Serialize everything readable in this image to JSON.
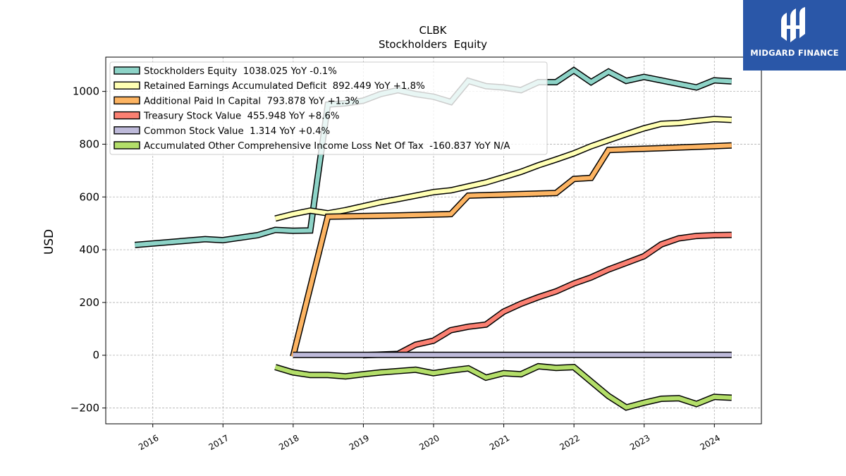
{
  "chart_data": {
    "type": "line",
    "title": "CLBK",
    "subtitle": "Stockholders  Equity",
    "ylabel": "USD",
    "xlabel": "",
    "ylim": [
      -260,
      1130
    ],
    "xlim": [
      2015.33,
      2024.67
    ],
    "grid": true,
    "legend_position": "top-left",
    "x_ticks": [
      "2016",
      "2017",
      "2018",
      "2019",
      "2020",
      "2021",
      "2022",
      "2023",
      "2024"
    ],
    "y_ticks": [
      "−200",
      "0",
      "200",
      "400",
      "600",
      "800",
      "1000"
    ],
    "series": [
      {
        "name": "Stockholders Equity",
        "legend_label": "Stockholders Equity  1038.025 YoY -0.1%",
        "color": "#8dd3c7",
        "points": [
          [
            "2015-09-30",
            418
          ],
          [
            "2016-09-30",
            440
          ],
          [
            "2016-12-31",
            436
          ],
          [
            "2017-06-30",
            455
          ],
          [
            "2017-09-30",
            475
          ],
          [
            "2017-12-31",
            472
          ],
          [
            "2018-03-31",
            473
          ],
          [
            "2018-06-30",
            950
          ],
          [
            "2018-09-30",
            955
          ],
          [
            "2018-12-31",
            965
          ],
          [
            "2019-03-31",
            990
          ],
          [
            "2019-06-30",
            1005
          ],
          [
            "2019-09-30",
            990
          ],
          [
            "2019-12-31",
            980
          ],
          [
            "2020-03-31",
            960
          ],
          [
            "2020-06-30",
            1040
          ],
          [
            "2020-09-30",
            1020
          ],
          [
            "2020-12-31",
            1015
          ],
          [
            "2021-03-31",
            1005
          ],
          [
            "2021-06-30",
            1035
          ],
          [
            "2021-09-30",
            1035
          ],
          [
            "2021-12-31",
            1080
          ],
          [
            "2022-03-31",
            1035
          ],
          [
            "2022-06-30",
            1075
          ],
          [
            "2022-09-30",
            1040
          ],
          [
            "2022-12-31",
            1055
          ],
          [
            "2023-09-30",
            1015
          ],
          [
            "2023-12-31",
            1042
          ],
          [
            "2024-03-31",
            1038
          ]
        ]
      },
      {
        "name": "Retained Earnings Accumulated Deficit",
        "legend_label": "Retained Earnings Accumulated Deficit  892.449 YoY +1.8%",
        "color": "#ffffb3",
        "points": [
          [
            "2017-09-30",
            518
          ],
          [
            "2017-12-31",
            535
          ],
          [
            "2018-03-31",
            548
          ],
          [
            "2018-06-30",
            538
          ],
          [
            "2018-09-30",
            550
          ],
          [
            "2018-12-31",
            565
          ],
          [
            "2019-03-31",
            580
          ],
          [
            "2019-06-30",
            592
          ],
          [
            "2019-09-30",
            605
          ],
          [
            "2019-12-31",
            618
          ],
          [
            "2020-03-31",
            625
          ],
          [
            "2020-06-30",
            640
          ],
          [
            "2020-09-30",
            655
          ],
          [
            "2020-12-31",
            675
          ],
          [
            "2021-03-31",
            695
          ],
          [
            "2021-06-30",
            720
          ],
          [
            "2021-09-30",
            742
          ],
          [
            "2021-12-31",
            765
          ],
          [
            "2022-03-31",
            792
          ],
          [
            "2022-06-30",
            815
          ],
          [
            "2022-09-30",
            838
          ],
          [
            "2022-12-31",
            860
          ],
          [
            "2023-03-31",
            877
          ],
          [
            "2023-06-30",
            880
          ],
          [
            "2023-09-30",
            888
          ],
          [
            "2023-12-31",
            895
          ],
          [
            "2024-03-31",
            892
          ]
        ]
      },
      {
        "name": "Additional Paid In Capital",
        "legend_label": "Additional Paid In Capital  793.878 YoY +1.3%",
        "color": "#fdb462",
        "points": [
          [
            "2017-12-31",
            -5
          ],
          [
            "2018-06-30",
            525
          ],
          [
            "2019-06-30",
            530
          ],
          [
            "2020-03-31",
            535
          ],
          [
            "2020-06-30",
            605
          ],
          [
            "2021-09-30",
            615
          ],
          [
            "2021-12-31",
            668
          ],
          [
            "2022-03-31",
            672
          ],
          [
            "2022-06-30",
            778
          ],
          [
            "2023-03-31",
            785
          ],
          [
            "2024-03-31",
            795
          ]
        ]
      },
      {
        "name": "Treasury Stock Value",
        "legend_label": "Treasury Stock Value  455.948 YoY +8.6%",
        "color": "#fb8072",
        "points": [
          [
            "2018-12-31",
            0
          ],
          [
            "2019-06-30",
            5
          ],
          [
            "2019-09-30",
            40
          ],
          [
            "2019-12-31",
            55
          ],
          [
            "2020-03-31",
            95
          ],
          [
            "2020-06-30",
            108
          ],
          [
            "2020-09-30",
            116
          ],
          [
            "2020-12-31",
            165
          ],
          [
            "2021-03-31",
            195
          ],
          [
            "2021-06-30",
            220
          ],
          [
            "2021-09-30",
            242
          ],
          [
            "2021-12-31",
            272
          ],
          [
            "2022-03-31",
            295
          ],
          [
            "2022-06-30",
            325
          ],
          [
            "2022-09-30",
            350
          ],
          [
            "2022-12-31",
            375
          ],
          [
            "2023-03-31",
            420
          ],
          [
            "2023-06-30",
            443
          ],
          [
            "2023-09-30",
            452
          ],
          [
            "2023-12-31",
            455
          ],
          [
            "2024-03-31",
            456
          ]
        ]
      },
      {
        "name": "Common Stock Value",
        "legend_label": "Common Stock Value  1.314 YoY +0.4%",
        "color": "#bebada",
        "points": [
          [
            "2017-12-31",
            1.3
          ],
          [
            "2024-03-31",
            1.314
          ]
        ]
      },
      {
        "name": "Accumulated Other Comprehensive Income Loss Net Of Tax",
        "legend_label": "Accumulated Other Comprehensive Income Loss Net Of Tax  -160.837 YoY N/A",
        "color": "#b3de69",
        "points": [
          [
            "2017-09-30",
            -45
          ],
          [
            "2017-12-31",
            -65
          ],
          [
            "2018-03-31",
            -75
          ],
          [
            "2018-06-30",
            -75
          ],
          [
            "2018-09-30",
            -80
          ],
          [
            "2018-12-31",
            -72
          ],
          [
            "2019-03-31",
            -65
          ],
          [
            "2019-06-30",
            -60
          ],
          [
            "2019-09-30",
            -55
          ],
          [
            "2019-12-31",
            -68
          ],
          [
            "2020-03-31",
            -58
          ],
          [
            "2020-06-30",
            -50
          ],
          [
            "2020-09-30",
            -85
          ],
          [
            "2020-12-31",
            -68
          ],
          [
            "2021-03-31",
            -72
          ],
          [
            "2021-06-30",
            -42
          ],
          [
            "2021-09-30",
            -48
          ],
          [
            "2021-12-31",
            -45
          ],
          [
            "2022-03-31",
            -100
          ],
          [
            "2022-06-30",
            -155
          ],
          [
            "2022-09-30",
            -198
          ],
          [
            "2022-12-31",
            -180
          ],
          [
            "2023-03-31",
            -165
          ],
          [
            "2023-06-30",
            -163
          ],
          [
            "2023-09-30",
            -185
          ],
          [
            "2023-12-31",
            -158
          ],
          [
            "2024-03-31",
            -161
          ]
        ]
      }
    ]
  },
  "logo": {
    "text": "MIDGARD FINANCE",
    "background": "#2a57a8",
    "icon": "midgard-logo-mark"
  }
}
